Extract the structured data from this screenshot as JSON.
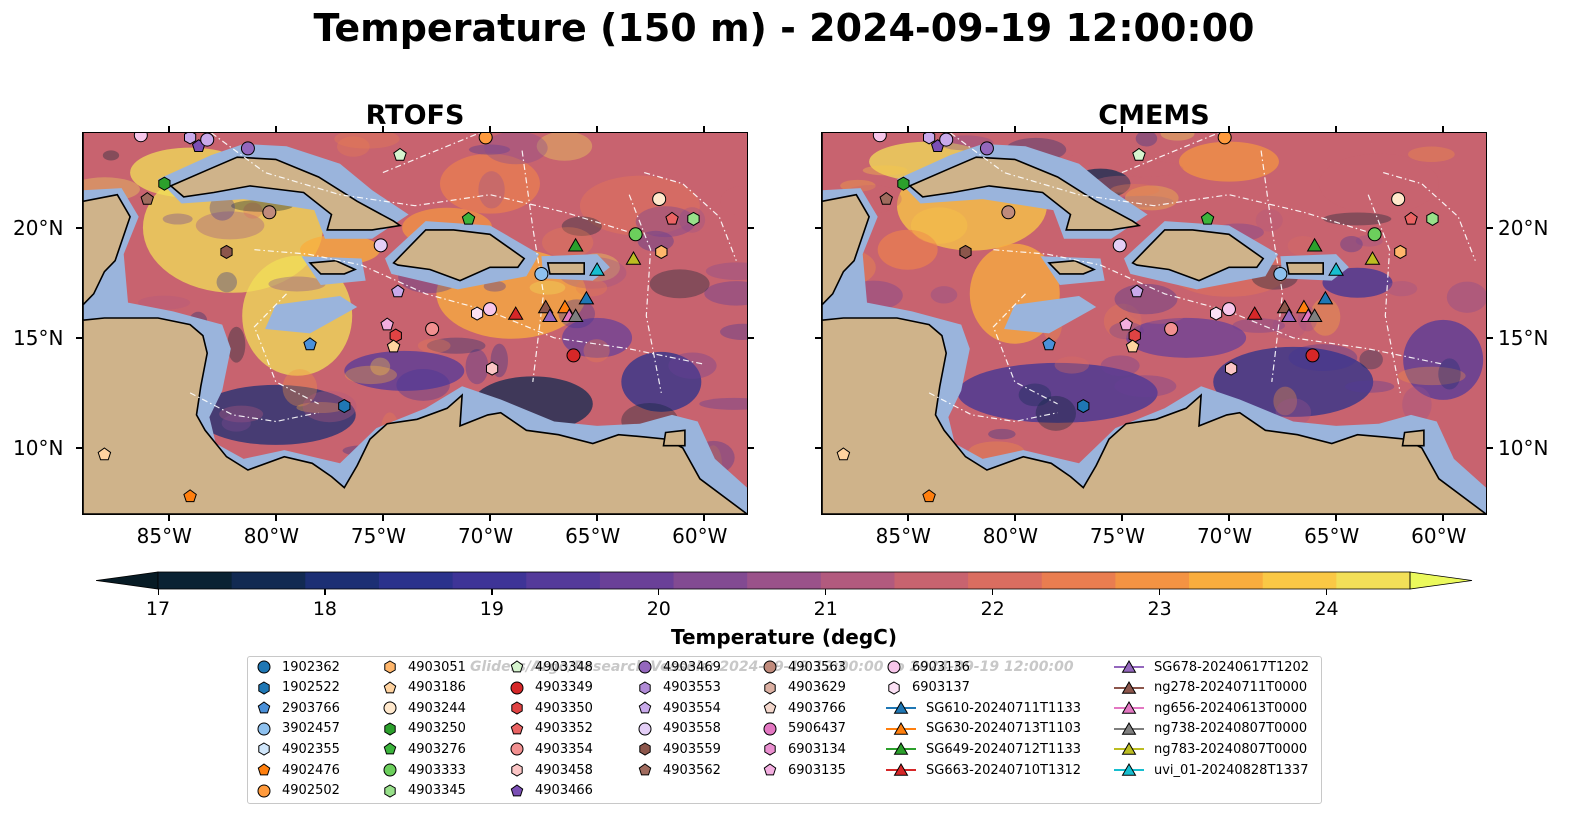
{
  "title": "Temperature (150 m) - 2024-09-19 12:00:00",
  "panels": [
    {
      "name": "RTOFS"
    },
    {
      "name": "CMEMS"
    }
  ],
  "axes": {
    "lon_labels": [
      "85°W",
      "80°W",
      "75°W",
      "70°W",
      "65°W",
      "60°W"
    ],
    "lon_values": [
      -85,
      -80,
      -75,
      -70,
      -65,
      -60
    ],
    "lat_labels": [
      "20°N",
      "15°N",
      "10°N"
    ],
    "lat_values": [
      20,
      15,
      10
    ],
    "extent": {
      "lon_min": -89,
      "lon_max": -58,
      "lat_min": 7,
      "lat_max": 24.3
    }
  },
  "colorbar": {
    "title": "Temperature (degC)",
    "ticks": [
      "17",
      "18",
      "19",
      "20",
      "21",
      "22",
      "23",
      "24"
    ],
    "tick_values": [
      17,
      18,
      19,
      20,
      21,
      22,
      23,
      24
    ],
    "min": 17,
    "max": 24.5,
    "step": 0.5,
    "colors": [
      "#0a2233",
      "#122a52",
      "#1c2f74",
      "#2b328c",
      "#3e3497",
      "#543a9a",
      "#6a4098",
      "#824a92",
      "#9a528a",
      "#b25a7e",
      "#c8636f",
      "#da6d60",
      "#e97d50",
      "#f39343",
      "#f9ad3d",
      "#fac845",
      "#f2df58"
    ],
    "under_color": "#071b25",
    "over_color": "#ebf95c"
  },
  "legend": {
    "watermark": "Gliders/Argo/Research Vessels: 2024-09-19 12:00:00 to 2024-09-19 12:00:00",
    "items": [
      {
        "label": "1902362",
        "marker": "circle",
        "color": "#1f77b4"
      },
      {
        "label": "1902522",
        "marker": "hexagon",
        "color": "#1f77b4"
      },
      {
        "label": "2903766",
        "marker": "pentagon",
        "color": "#4a90d9"
      },
      {
        "label": "3902457",
        "marker": "circle",
        "color": "#8ec1ef"
      },
      {
        "label": "4902355",
        "marker": "hexagon",
        "color": "#d0e6fa"
      },
      {
        "label": "4902476",
        "marker": "pentagon",
        "color": "#ff7f0e"
      },
      {
        "label": "4902502",
        "marker": "circle",
        "color": "#ff9a3c"
      },
      {
        "label": "4903051",
        "marker": "hexagon",
        "color": "#ffb66b"
      },
      {
        "label": "4903186",
        "marker": "pentagon",
        "color": "#ffd3a0"
      },
      {
        "label": "4903244",
        "marker": "circle",
        "color": "#ffe8cc"
      },
      {
        "label": "4903250",
        "marker": "hexagon",
        "color": "#2ca02c"
      },
      {
        "label": "4903276",
        "marker": "pentagon",
        "color": "#3cb43c"
      },
      {
        "label": "4903333",
        "marker": "circle",
        "color": "#6ccf5c"
      },
      {
        "label": "4903345",
        "marker": "hexagon",
        "color": "#98e08a"
      },
      {
        "label": "4903348",
        "marker": "pentagon",
        "color": "#d6f5cf"
      },
      {
        "label": "4903349",
        "marker": "circle",
        "color": "#d62728"
      },
      {
        "label": "4903350",
        "marker": "hexagon",
        "color": "#e04343"
      },
      {
        "label": "4903352",
        "marker": "pentagon",
        "color": "#ea6363"
      },
      {
        "label": "4903354",
        "marker": "circle",
        "color": "#f29090"
      },
      {
        "label": "4903458",
        "marker": "hexagon",
        "color": "#fbc5c5"
      },
      {
        "label": "4903466",
        "marker": "pentagon",
        "color": "#7b4fb5"
      },
      {
        "label": "4903469",
        "marker": "circle",
        "color": "#9467bd"
      },
      {
        "label": "4903553",
        "marker": "hexagon",
        "color": "#b08ad6"
      },
      {
        "label": "4903554",
        "marker": "pentagon",
        "color": "#c9aaeb"
      },
      {
        "label": "4903558",
        "marker": "circle",
        "color": "#e4cff7"
      },
      {
        "label": "4903559",
        "marker": "hexagon",
        "color": "#8c564b"
      },
      {
        "label": "4903562",
        "marker": "pentagon",
        "color": "#a06b5e"
      },
      {
        "label": "4903563",
        "marker": "circle",
        "color": "#c08b7c"
      },
      {
        "label": "4903629",
        "marker": "hexagon",
        "color": "#dbb0a2"
      },
      {
        "label": "4903766",
        "marker": "pentagon",
        "color": "#f3d7cc"
      },
      {
        "label": "5906437",
        "marker": "circle",
        "color": "#e377c2"
      },
      {
        "label": "6903134",
        "marker": "hexagon",
        "color": "#ea8fd0"
      },
      {
        "label": "6903135",
        "marker": "pentagon",
        "color": "#f3aee0"
      },
      {
        "label": "6903136",
        "marker": "circle",
        "color": "#f7c6ea"
      },
      {
        "label": "6903137",
        "marker": "hexagon",
        "color": "#fbe0f4"
      },
      {
        "label": "SG610-20240711T1133",
        "marker": "triangle",
        "color": "#1f77b4"
      },
      {
        "label": "SG630-20240713T1103",
        "marker": "triangle",
        "color": "#ff7f0e"
      },
      {
        "label": "SG649-20240712T1133",
        "marker": "triangle",
        "color": "#2ca02c"
      },
      {
        "label": "SG663-20240710T1312",
        "marker": "triangle",
        "color": "#d62728"
      },
      {
        "label": "SG678-20240617T1202",
        "marker": "triangle",
        "color": "#9467bd"
      },
      {
        "label": "ng278-20240711T0000",
        "marker": "triangle",
        "color": "#8c564b"
      },
      {
        "label": "ng656-20240613T0000",
        "marker": "triangle",
        "color": "#e377c2"
      },
      {
        "label": "ng738-20240807T0000",
        "marker": "triangle",
        "color": "#7f7f7f"
      },
      {
        "label": "ng783-20240807T0000",
        "marker": "triangle",
        "color": "#bcbd22"
      },
      {
        "label": "uvi_01-20240828T1337",
        "marker": "triangle",
        "color": "#17becf"
      }
    ]
  },
  "map_points": [
    {
      "lon": -84.0,
      "lat": 24.1,
      "marker": "hexagon",
      "color": "#c9aaeb"
    },
    {
      "lon": -83.6,
      "lat": 23.7,
      "marker": "pentagon",
      "color": "#7b4fb5"
    },
    {
      "lon": -83.2,
      "lat": 24.0,
      "marker": "circle",
      "color": "#c9aaeb"
    },
    {
      "lon": -81.3,
      "lat": 23.6,
      "marker": "circle",
      "color": "#9467bd"
    },
    {
      "lon": -86.3,
      "lat": 24.2,
      "marker": "circle",
      "color": "#f7c6ea"
    },
    {
      "lon": -70.2,
      "lat": 24.1,
      "marker": "circle",
      "color": "#ff9a3c"
    },
    {
      "lon": -74.2,
      "lat": 23.3,
      "marker": "pentagon",
      "color": "#d6f5cf"
    },
    {
      "lon": -85.2,
      "lat": 22.0,
      "marker": "hexagon",
      "color": "#2ca02c"
    },
    {
      "lon": -86.0,
      "lat": 21.3,
      "marker": "pentagon",
      "color": "#a06b5e"
    },
    {
      "lon": -80.3,
      "lat": 20.7,
      "marker": "circle",
      "color": "#c08b7c"
    },
    {
      "lon": -82.3,
      "lat": 18.9,
      "marker": "hexagon",
      "color": "#8c564b"
    },
    {
      "lon": -75.1,
      "lat": 19.2,
      "marker": "circle",
      "color": "#e4cff7"
    },
    {
      "lon": -71.0,
      "lat": 20.4,
      "marker": "pentagon",
      "color": "#3cb43c"
    },
    {
      "lon": -74.3,
      "lat": 17.1,
      "marker": "pentagon",
      "color": "#c9aaeb"
    },
    {
      "lon": -67.6,
      "lat": 17.9,
      "marker": "circle",
      "color": "#8ec1ef"
    },
    {
      "lon": -66.0,
      "lat": 19.2,
      "marker": "triangle",
      "color": "#2ca02c"
    },
    {
      "lon": -65.0,
      "lat": 18.1,
      "marker": "triangle",
      "color": "#17becf"
    },
    {
      "lon": -63.3,
      "lat": 18.6,
      "marker": "triangle",
      "color": "#bcbd22"
    },
    {
      "lon": -63.2,
      "lat": 19.7,
      "marker": "circle",
      "color": "#6ccf5c"
    },
    {
      "lon": -62.1,
      "lat": 21.3,
      "marker": "circle",
      "color": "#ffe8cc"
    },
    {
      "lon": -61.5,
      "lat": 20.4,
      "marker": "pentagon",
      "color": "#ea6363"
    },
    {
      "lon": -60.5,
      "lat": 20.4,
      "marker": "hexagon",
      "color": "#98e08a"
    },
    {
      "lon": -62.0,
      "lat": 18.9,
      "marker": "hexagon",
      "color": "#ffb66b"
    },
    {
      "lon": -65.5,
      "lat": 16.8,
      "marker": "triangle",
      "color": "#1f77b4"
    },
    {
      "lon": -66.5,
      "lat": 16.4,
      "marker": "triangle",
      "color": "#ff7f0e"
    },
    {
      "lon": -67.4,
      "lat": 16.4,
      "marker": "triangle",
      "color": "#8c564b"
    },
    {
      "lon": -67.2,
      "lat": 16.0,
      "marker": "triangle",
      "color": "#9467bd"
    },
    {
      "lon": -66.3,
      "lat": 16.0,
      "marker": "triangle",
      "color": "#e377c2"
    },
    {
      "lon": -66.0,
      "lat": 16.0,
      "marker": "triangle",
      "color": "#7f7f7f"
    },
    {
      "lon": -68.8,
      "lat": 16.1,
      "marker": "triangle",
      "color": "#d62728"
    },
    {
      "lon": -70.0,
      "lat": 16.3,
      "marker": "circle",
      "color": "#f7c6ea"
    },
    {
      "lon": -70.6,
      "lat": 16.1,
      "marker": "hexagon",
      "color": "#fbe0f4"
    },
    {
      "lon": -66.1,
      "lat": 14.2,
      "marker": "circle",
      "color": "#d62728"
    },
    {
      "lon": -69.9,
      "lat": 13.6,
      "marker": "hexagon",
      "color": "#fbc5c5"
    },
    {
      "lon": -72.7,
      "lat": 15.4,
      "marker": "circle",
      "color": "#f29090"
    },
    {
      "lon": -74.8,
      "lat": 15.6,
      "marker": "pentagon",
      "color": "#f3aee0"
    },
    {
      "lon": -74.4,
      "lat": 15.1,
      "marker": "hexagon",
      "color": "#e04343"
    },
    {
      "lon": -74.5,
      "lat": 14.6,
      "marker": "pentagon",
      "color": "#ffd3a0"
    },
    {
      "lon": -78.4,
      "lat": 14.7,
      "marker": "pentagon",
      "color": "#4a90d9"
    },
    {
      "lon": -76.8,
      "lat": 11.9,
      "marker": "hexagon",
      "color": "#1f77b4"
    },
    {
      "lon": -88.0,
      "lat": 9.7,
      "marker": "pentagon",
      "color": "#ffd3a0"
    },
    {
      "lon": -84.0,
      "lat": 7.8,
      "marker": "pentagon",
      "color": "#ff7f0e"
    }
  ]
}
